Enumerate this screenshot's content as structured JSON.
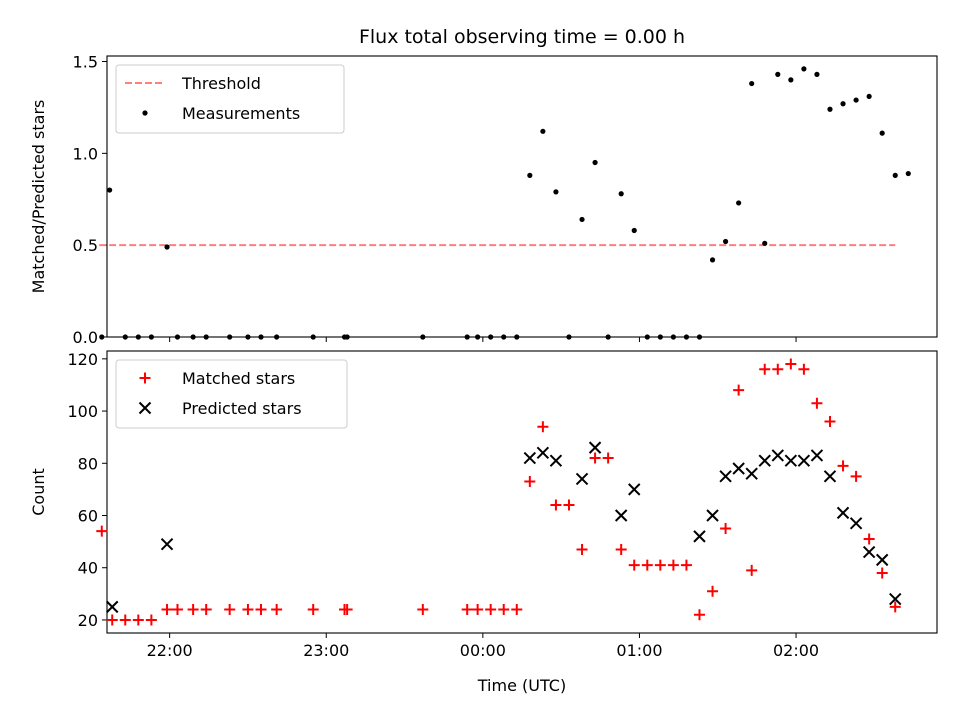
{
  "chart_data": [
    {
      "type": "scatter",
      "title": "Flux total observing time = 0.00 h",
      "xlabel": "",
      "ylabel": "Matched/Predicted stars",
      "xlim": [
        "21:36",
        "02:54"
      ],
      "ylim": [
        0,
        1.53
      ],
      "yticks": [
        0.0,
        0.5,
        1.0,
        1.5
      ],
      "xticks": [
        "22:00",
        "23:00",
        "00:00",
        "01:00",
        "02:00"
      ],
      "legend_position": "top-left",
      "threshold": {
        "name": "Threshold",
        "value": 0.5,
        "x_start": "21:33",
        "x_end": "02:38",
        "color": "#ff7f7f",
        "style": "dashed"
      },
      "series": [
        {
          "name": "Measurements",
          "marker": "dot",
          "color": "#000000",
          "points": [
            [
              "21:34",
              0.0
            ],
            [
              "21:37",
              0.8
            ],
            [
              "21:43",
              0.0
            ],
            [
              "21:48",
              0.0
            ],
            [
              "21:53",
              0.0
            ],
            [
              "21:59",
              0.49
            ],
            [
              "22:03",
              0.0
            ],
            [
              "22:09",
              0.0
            ],
            [
              "22:14",
              0.0
            ],
            [
              "22:23",
              0.0
            ],
            [
              "22:30",
              0.0
            ],
            [
              "22:35",
              0.0
            ],
            [
              "22:41",
              0.0
            ],
            [
              "22:55",
              0.0
            ],
            [
              "23:07",
              0.0
            ],
            [
              "23:08",
              0.0
            ],
            [
              "23:37",
              0.0
            ],
            [
              "23:54",
              0.0
            ],
            [
              "23:58",
              0.0
            ],
            [
              "00:03",
              0.0
            ],
            [
              "00:08",
              0.0
            ],
            [
              "00:13",
              0.0
            ],
            [
              "00:18",
              0.88
            ],
            [
              "00:23",
              1.12
            ],
            [
              "00:28",
              0.79
            ],
            [
              "00:33",
              0.0
            ],
            [
              "00:38",
              0.64
            ],
            [
              "00:43",
              0.95
            ],
            [
              "00:48",
              0.0
            ],
            [
              "00:53",
              0.78
            ],
            [
              "00:58",
              0.58
            ],
            [
              "01:03",
              0.0
            ],
            [
              "01:08",
              0.0
            ],
            [
              "01:13",
              0.0
            ],
            [
              "01:18",
              0.0
            ],
            [
              "01:23",
              0.0
            ],
            [
              "01:28",
              0.42
            ],
            [
              "01:33",
              0.52
            ],
            [
              "01:38",
              0.73
            ],
            [
              "01:43",
              1.38
            ],
            [
              "01:48",
              0.51
            ],
            [
              "01:53",
              1.43
            ],
            [
              "01:58",
              1.4
            ],
            [
              "02:03",
              1.46
            ],
            [
              "02:08",
              1.43
            ],
            [
              "02:13",
              1.24
            ],
            [
              "02:18",
              1.27
            ],
            [
              "02:23",
              1.29
            ],
            [
              "02:28",
              1.31
            ],
            [
              "02:33",
              1.11
            ],
            [
              "02:38",
              0.88
            ],
            [
              "02:43",
              0.89
            ]
          ]
        }
      ]
    },
    {
      "type": "scatter",
      "title": "",
      "xlabel": "Time (UTC)",
      "ylabel": "Count",
      "xlim": [
        "21:36",
        "02:54"
      ],
      "ylim": [
        15,
        123
      ],
      "yticks": [
        20,
        40,
        60,
        80,
        100,
        120
      ],
      "xticks": [
        "22:00",
        "23:00",
        "00:00",
        "01:00",
        "02:00"
      ],
      "legend_position": "top-left",
      "series": [
        {
          "name": "Matched stars",
          "marker": "plus",
          "color": "#ff0000",
          "points": [
            [
              "21:34",
              54
            ],
            [
              "21:38",
              20
            ],
            [
              "21:43",
              20
            ],
            [
              "21:48",
              20
            ],
            [
              "21:53",
              20
            ],
            [
              "21:59",
              24
            ],
            [
              "22:03",
              24
            ],
            [
              "22:09",
              24
            ],
            [
              "22:14",
              24
            ],
            [
              "22:23",
              24
            ],
            [
              "22:30",
              24
            ],
            [
              "22:35",
              24
            ],
            [
              "22:41",
              24
            ],
            [
              "22:55",
              24
            ],
            [
              "23:07",
              24
            ],
            [
              "23:08",
              24
            ],
            [
              "23:37",
              24
            ],
            [
              "23:54",
              24
            ],
            [
              "23:58",
              24
            ],
            [
              "00:03",
              24
            ],
            [
              "00:08",
              24
            ],
            [
              "00:13",
              24
            ],
            [
              "00:18",
              73
            ],
            [
              "00:23",
              94
            ],
            [
              "00:28",
              64
            ],
            [
              "00:33",
              64
            ],
            [
              "00:38",
              47
            ],
            [
              "00:43",
              82
            ],
            [
              "00:48",
              82
            ],
            [
              "00:53",
              47
            ],
            [
              "00:58",
              41
            ],
            [
              "01:03",
              41
            ],
            [
              "01:08",
              41
            ],
            [
              "01:13",
              41
            ],
            [
              "01:18",
              41
            ],
            [
              "01:23",
              22
            ],
            [
              "01:28",
              31
            ],
            [
              "01:33",
              55
            ],
            [
              "01:38",
              108
            ],
            [
              "01:43",
              39
            ],
            [
              "01:48",
              116
            ],
            [
              "01:53",
              116
            ],
            [
              "01:58",
              118
            ],
            [
              "02:03",
              116
            ],
            [
              "02:08",
              103
            ],
            [
              "02:13",
              96
            ],
            [
              "02:18",
              79
            ],
            [
              "02:23",
              75
            ],
            [
              "02:28",
              51
            ],
            [
              "02:33",
              38
            ],
            [
              "02:38",
              25
            ]
          ]
        },
        {
          "name": "Predicted stars",
          "marker": "x",
          "color": "#000000",
          "points": [
            [
              "21:38",
              25
            ],
            [
              "21:59",
              49
            ],
            [
              "00:18",
              82
            ],
            [
              "00:23",
              84
            ],
            [
              "00:28",
              81
            ],
            [
              "00:38",
              74
            ],
            [
              "00:43",
              86
            ],
            [
              "00:53",
              60
            ],
            [
              "00:58",
              70
            ],
            [
              "01:23",
              52
            ],
            [
              "01:28",
              60
            ],
            [
              "01:33",
              75
            ],
            [
              "01:38",
              78
            ],
            [
              "01:43",
              76
            ],
            [
              "01:48",
              81
            ],
            [
              "01:53",
              83
            ],
            [
              "01:58",
              81
            ],
            [
              "02:03",
              81
            ],
            [
              "02:08",
              83
            ],
            [
              "02:13",
              75
            ],
            [
              "02:18",
              61
            ],
            [
              "02:23",
              57
            ],
            [
              "02:28",
              46
            ],
            [
              "02:33",
              43
            ],
            [
              "02:38",
              28
            ]
          ]
        }
      ]
    }
  ]
}
